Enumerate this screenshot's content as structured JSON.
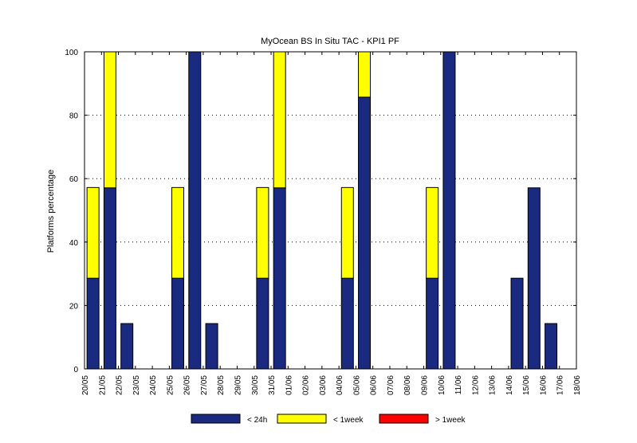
{
  "chart_data": {
    "type": "bar",
    "stacked": true,
    "title": "MyOcean  BS In Situ TAC - KPI1  PF",
    "ylabel": "Platforms percentage",
    "xlabel": "",
    "ylim": [
      0,
      100
    ],
    "yticks": [
      0,
      20,
      40,
      60,
      80,
      100
    ],
    "grid": "horizontal dotted",
    "legend_position": "bottom",
    "x_ticks": [
      "20/05",
      "21/05",
      "22/05",
      "23/05",
      "24/05",
      "25/05",
      "26/05",
      "27/05",
      "28/05",
      "29/05",
      "30/05",
      "31/05",
      "01/06",
      "02/06",
      "03/06",
      "04/06",
      "05/06",
      "06/06",
      "07/06",
      "08/06",
      "09/06",
      "10/06",
      "11/06",
      "12/06",
      "13/06",
      "14/06",
      "15/06",
      "16/06",
      "17/06",
      "18/06"
    ],
    "categories": [
      "21/05",
      "22/05",
      "23/05",
      "24/05",
      "25/05",
      "26/05",
      "27/05",
      "28/05",
      "29/05",
      "30/05",
      "31/05",
      "01/06",
      "02/06",
      "03/06",
      "04/06",
      "05/06",
      "06/06",
      "07/06",
      "08/06",
      "09/06",
      "10/06",
      "11/06",
      "12/06",
      "13/06",
      "14/06",
      "15/06",
      "16/06",
      "17/06"
    ],
    "series": [
      {
        "name": "< 24h",
        "color": "#1a2a80",
        "values": [
          28.6,
          57.1,
          14.3,
          0,
          0,
          28.6,
          100,
          14.3,
          0,
          0,
          28.6,
          57.1,
          0,
          0,
          0,
          28.6,
          85.7,
          0,
          0,
          0,
          28.6,
          100,
          0,
          0,
          0,
          28.6,
          57.1,
          14.3
        ]
      },
      {
        "name": "< 1week",
        "color": "#ffff00",
        "values": [
          28.6,
          42.9,
          0,
          0,
          0,
          28.6,
          0,
          0,
          0,
          0,
          28.6,
          42.9,
          0,
          0,
          0,
          28.6,
          14.3,
          0,
          0,
          0,
          28.6,
          0,
          0,
          0,
          0,
          0,
          0,
          0
        ]
      },
      {
        "name": "> 1week",
        "color": "#ff0000",
        "values": [
          0,
          0,
          0,
          0,
          0,
          0,
          0,
          0,
          0,
          0,
          0,
          0,
          0,
          0,
          0,
          0,
          0,
          0,
          0,
          0,
          0,
          0,
          0,
          0,
          0,
          0,
          0,
          0
        ]
      }
    ]
  }
}
